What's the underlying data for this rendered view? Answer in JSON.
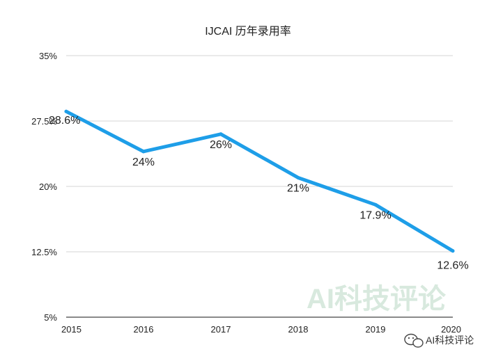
{
  "chart_data": {
    "type": "line",
    "title": "IJCAI 历年录用率",
    "categories": [
      "2015",
      "2016",
      "2017",
      "2018",
      "2019",
      "2020"
    ],
    "values": [
      28.6,
      24,
      26,
      21,
      17.9,
      12.6
    ],
    "data_labels": [
      "28.6%",
      "24%",
      "26%",
      "21%",
      "17.9%",
      "12.6%"
    ],
    "yticks": [
      5,
      12.5,
      20,
      27.5,
      35
    ],
    "ytick_labels": [
      "5%",
      "12.5%",
      "20%",
      "27.5%",
      "35%"
    ],
    "ylim": [
      5,
      35
    ],
    "grid": true,
    "line_color": "#1e9ee8"
  },
  "watermarks": {
    "center_text": "AI科技评论",
    "corner_text": "AI科技评论"
  }
}
